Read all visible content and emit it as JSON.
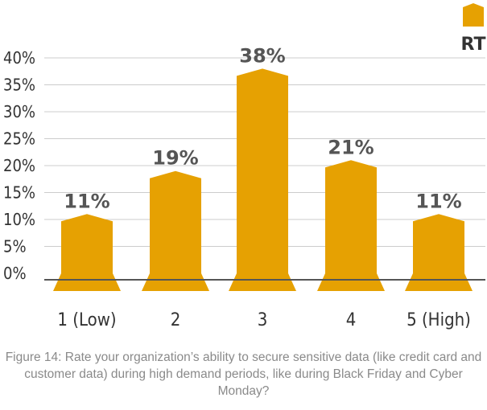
{
  "chart_data": {
    "type": "bar",
    "categories": [
      "1 (Low)",
      "2",
      "3",
      "4",
      "5 (High)"
    ],
    "series": [
      {
        "name": "RT",
        "values": [
          11,
          19,
          38,
          21,
          11
        ],
        "labels": [
          "11%",
          "19%",
          "38%",
          "21%",
          "11%"
        ]
      }
    ],
    "ylim": [
      0,
      40
    ],
    "yticks": [
      "0%",
      "5%",
      "10%",
      "15%",
      "20%",
      "25%",
      "30%",
      "35%",
      "40%"
    ],
    "grid": true,
    "legend_position": "top-right",
    "bar_color": "#E6A102",
    "grid_color": "#cccccc",
    "baseline_color": "#555555"
  },
  "caption": "Figure 14: Rate your organization’s ability to secure sensitive data (like credit card and customer data) during high demand periods, like during Black Friday and Cyber Monday?"
}
